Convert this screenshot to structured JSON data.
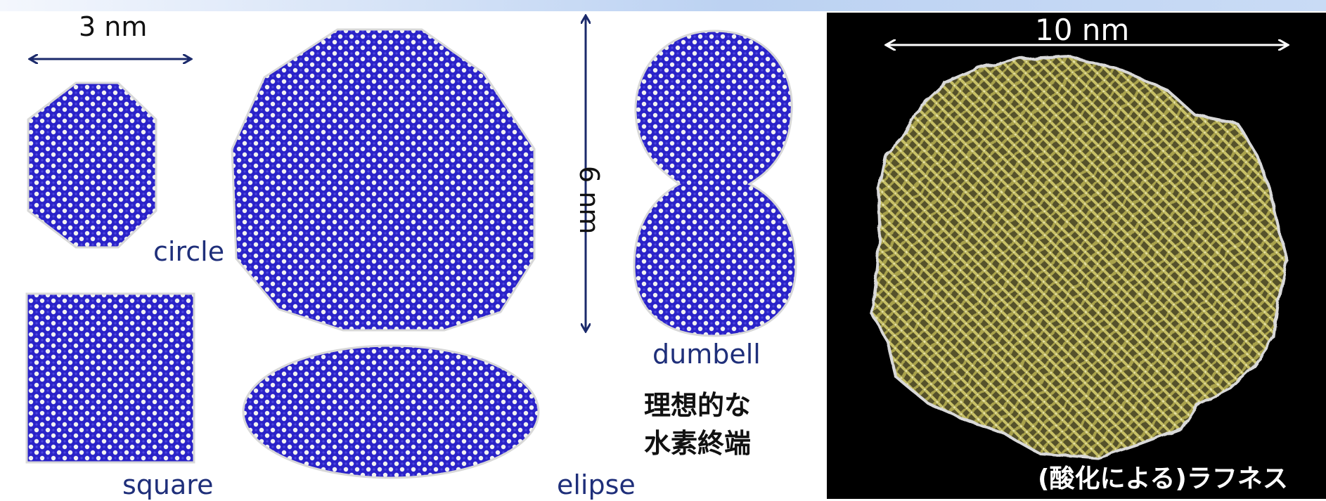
{
  "labels": {
    "scale_3nm": "3 nm",
    "scale_6nm": "6 nm",
    "scale_10nm": "10 nm",
    "circle": "circle",
    "square": "square",
    "elipse": "elipse",
    "dumbell": "dumbell",
    "ideal_line1": "理想的な",
    "ideal_line2": "水素終端",
    "roughness": "(酸化による)ラフネス"
  },
  "colors": {
    "lattice_blue": "#2a22c8",
    "hydrogen_white": "#f2f2f2",
    "arrow_navy": "#1b2a6b",
    "label_navy": "#1f2f7a",
    "roughness_yellow": "#b9b25a",
    "panel_black": "#000000"
  }
}
